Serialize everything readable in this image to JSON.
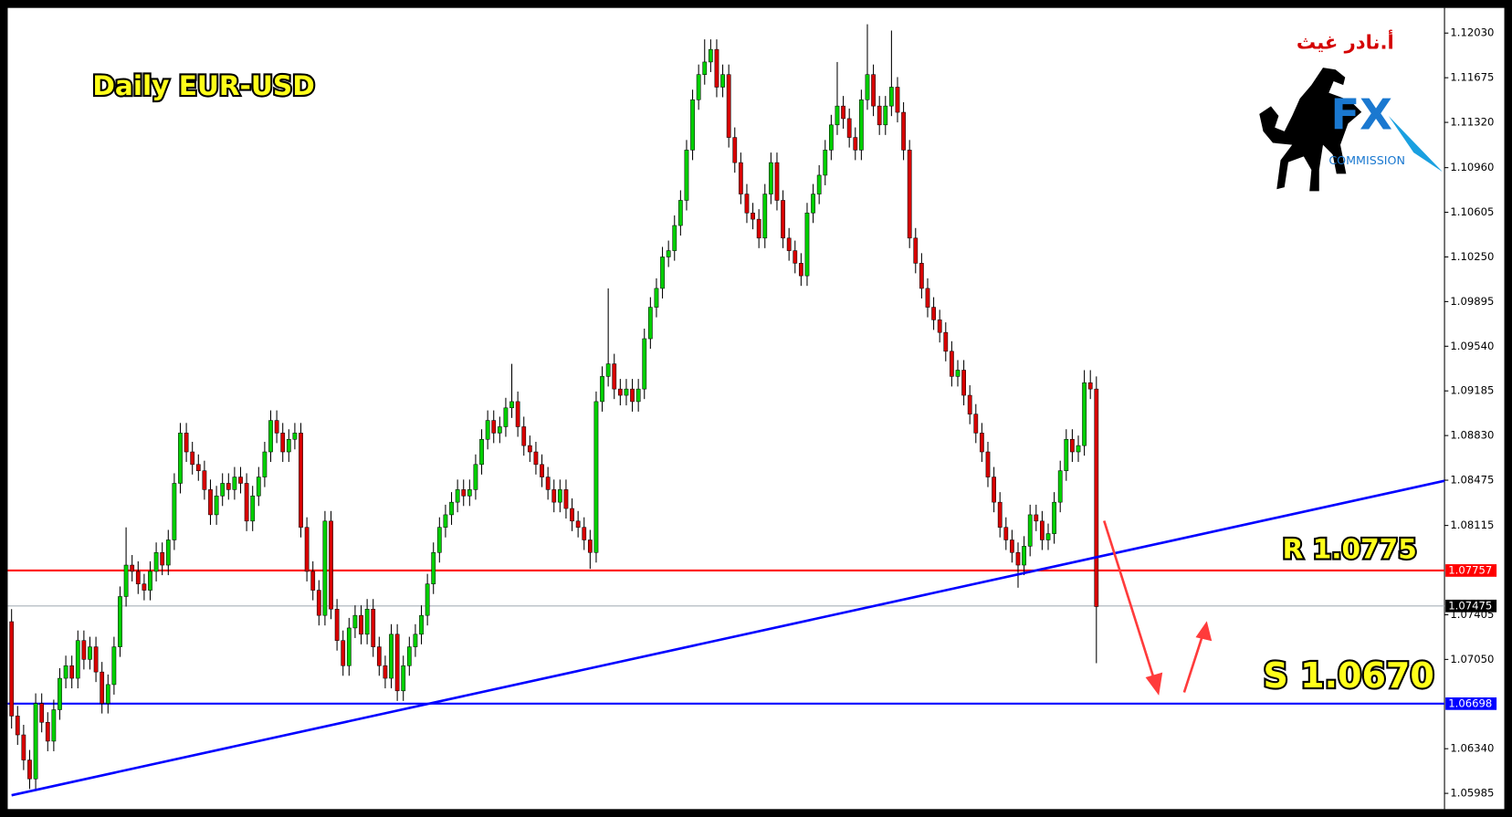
{
  "chart_data": {
    "type": "candlestick",
    "title": "Daily EUR-USD",
    "up_color": "#00d000",
    "down_color": "#d80000",
    "ylim": [
      1.0586,
      1.1223
    ],
    "yticks": [
      {
        "value": 1.1203,
        "label": "1.12030"
      },
      1.11675,
      {
        "value": 1.1132,
        "label": "1.11320"
      },
      {
        "value": 1.1096,
        "label": "1.10960"
      },
      1.10605,
      {
        "value": 1.1025,
        "label": "1.10250"
      },
      1.09895,
      {
        "value": 1.0954,
        "label": "1.09540"
      },
      1.09185,
      {
        "value": 1.0883,
        "label": "1.08830"
      },
      1.08475,
      1.08115,
      1.07405,
      {
        "value": 1.0705,
        "label": "1.07050"
      },
      {
        "value": 1.0634,
        "label": "1.06340"
      },
      1.05985
    ],
    "open": [
      1.0735,
      1.066,
      1.0645,
      1.0625,
      1.061,
      1.067,
      1.0655,
      1.064,
      1.0665,
      1.069,
      1.07,
      1.069,
      1.072,
      1.0705,
      1.0715,
      1.0695,
      1.067,
      1.0685,
      1.0715,
      1.0755,
      1.078,
      1.0775,
      1.0765,
      1.076,
      1.0775,
      1.079,
      1.078,
      1.08,
      1.0845,
      1.0885,
      1.087,
      1.086,
      1.0855,
      1.084,
      1.082,
      1.0835,
      1.0845,
      1.084,
      1.085,
      1.0845,
      1.0815,
      1.0835,
      1.085,
      1.087,
      1.0895,
      1.0885,
      1.087,
      1.088,
      1.0885,
      1.081,
      1.0775,
      1.076,
      1.074,
      1.0815,
      1.0745,
      1.072,
      1.07,
      1.073,
      1.074,
      1.0725,
      1.0745,
      1.0715,
      1.07,
      1.069,
      1.0725,
      1.068,
      1.07,
      1.0715,
      1.0725,
      1.074,
      1.0765,
      1.079,
      1.081,
      1.082,
      1.083,
      1.084,
      1.0835,
      1.084,
      1.086,
      1.088,
      1.0895,
      1.0885,
      1.089,
      1.0905,
      1.091,
      1.089,
      1.0875,
      1.087,
      1.086,
      1.085,
      1.084,
      1.083,
      1.084,
      1.0825,
      1.0815,
      1.081,
      1.08,
      1.079,
      1.091,
      1.093,
      1.094,
      1.092,
      1.0915,
      1.092,
      1.091,
      1.092,
      1.096,
      1.0985,
      1.1,
      1.1025,
      1.103,
      1.105,
      1.107,
      1.111,
      1.115,
      1.117,
      1.118,
      1.119,
      1.116,
      1.117,
      1.112,
      1.11,
      1.1075,
      1.106,
      1.1055,
      1.104,
      1.1075,
      1.11,
      1.107,
      1.104,
      1.103,
      1.102,
      1.101,
      1.106,
      1.1075,
      1.109,
      1.111,
      1.113,
      1.1145,
      1.1135,
      1.112,
      1.111,
      1.115,
      1.117,
      1.1145,
      1.113,
      1.1145,
      1.116,
      1.114,
      1.111,
      1.104,
      1.102,
      1.1,
      1.0985,
      1.0975,
      1.0965,
      1.095,
      1.093,
      1.0935,
      1.0915,
      1.09,
      1.0885,
      1.087,
      1.085,
      1.083,
      1.081,
      1.08,
      1.079,
      1.078,
      1.0795,
      1.082,
      1.0815,
      1.08,
      1.0805,
      1.083,
      1.0855,
      1.088,
      1.087,
      1.0875,
      1.0925,
      1.092
    ],
    "high": [
      1.0745,
      1.0668,
      1.0653,
      1.0633,
      1.0678,
      1.0678,
      1.0663,
      1.0673,
      1.0698,
      1.0708,
      1.0708,
      1.0728,
      1.0728,
      1.0723,
      1.0723,
      1.0703,
      1.0693,
      1.0723,
      1.0763,
      1.081,
      1.0788,
      1.0783,
      1.0773,
      1.0783,
      1.0798,
      1.0798,
      1.0808,
      1.0853,
      1.0893,
      1.0893,
      1.0878,
      1.0868,
      1.0863,
      1.0848,
      1.0843,
      1.0853,
      1.0853,
      1.0858,
      1.0858,
      1.0853,
      1.0843,
      1.0858,
      1.0878,
      1.0903,
      1.0903,
      1.0893,
      1.0888,
      1.0893,
      1.0893,
      1.0818,
      1.0783,
      1.0768,
      1.0823,
      1.0823,
      1.0753,
      1.0728,
      1.0738,
      1.0748,
      1.0748,
      1.0753,
      1.0753,
      1.0723,
      1.0708,
      1.0733,
      1.0733,
      1.0708,
      1.0723,
      1.0733,
      1.0748,
      1.0773,
      1.0798,
      1.0818,
      1.0828,
      1.0838,
      1.0848,
      1.0848,
      1.0848,
      1.0868,
      1.0888,
      1.0903,
      1.0903,
      1.0898,
      1.0913,
      1.094,
      1.0918,
      1.0898,
      1.0883,
      1.0878,
      1.0868,
      1.0858,
      1.0848,
      1.0848,
      1.0848,
      1.0833,
      1.0823,
      1.0818,
      1.0808,
      1.0918,
      1.0938,
      1.1,
      1.0948,
      1.0928,
      1.0928,
      1.0928,
      1.0928,
      1.0968,
      1.0993,
      1.1008,
      1.1033,
      1.1038,
      1.1058,
      1.1078,
      1.1118,
      1.1158,
      1.1178,
      1.1198,
      1.1198,
      1.1198,
      1.1178,
      1.1178,
      1.1128,
      1.1108,
      1.1083,
      1.1068,
      1.1063,
      1.1083,
      1.1108,
      1.1108,
      1.1078,
      1.1048,
      1.1038,
      1.1028,
      1.1068,
      1.1083,
      1.1098,
      1.1118,
      1.1138,
      1.118,
      1.1153,
      1.1143,
      1.1128,
      1.1158,
      1.121,
      1.1178,
      1.1153,
      1.1153,
      1.1205,
      1.1168,
      1.1148,
      1.1118,
      1.1048,
      1.1028,
      1.1008,
      1.0993,
      1.0983,
      1.0973,
      1.0958,
      1.0943,
      1.0943,
      1.0923,
      1.0908,
      1.0893,
      1.0878,
      1.0858,
      1.0838,
      1.0818,
      1.0808,
      1.0798,
      1.0803,
      1.0828,
      1.0828,
      1.0823,
      1.0813,
      1.0838,
      1.0863,
      1.0888,
      1.0888,
      1.0883,
      1.0935,
      1.0935,
      1.093
    ],
    "low": [
      1.065,
      1.0637,
      1.0617,
      1.0602,
      1.0602,
      1.0647,
      1.0632,
      1.0632,
      1.0657,
      1.0682,
      1.0682,
      1.0682,
      1.0697,
      1.0697,
      1.0687,
      1.0662,
      1.0662,
      1.0677,
      1.0707,
      1.0747,
      1.0767,
      1.0757,
      1.0752,
      1.0752,
      1.0767,
      1.0772,
      1.0772,
      1.0792,
      1.0837,
      1.0862,
      1.0852,
      1.0847,
      1.0832,
      1.0812,
      1.0812,
      1.0827,
      1.0832,
      1.0832,
      1.0837,
      1.0807,
      1.0807,
      1.0827,
      1.0842,
      1.0862,
      1.0877,
      1.0862,
      1.0862,
      1.0872,
      1.0802,
      1.0767,
      1.0752,
      1.0732,
      1.0732,
      1.0737,
      1.0712,
      1.0692,
      1.0692,
      1.0722,
      1.0717,
      1.0717,
      1.0707,
      1.0692,
      1.0682,
      1.0682,
      1.0672,
      1.0672,
      1.0692,
      1.0707,
      1.0717,
      1.0732,
      1.0757,
      1.0782,
      1.0802,
      1.0812,
      1.0822,
      1.0827,
      1.0827,
      1.0832,
      1.0852,
      1.0872,
      1.0877,
      1.0877,
      1.0882,
      1.0897,
      1.0882,
      1.0867,
      1.0862,
      1.0852,
      1.0842,
      1.0832,
      1.0822,
      1.0822,
      1.0817,
      1.0807,
      1.0802,
      1.0792,
      1.0777,
      1.0782,
      1.0902,
      1.0922,
      1.0912,
      1.0907,
      1.0907,
      1.0902,
      1.0902,
      1.0912,
      1.0952,
      1.0977,
      1.0992,
      1.1017,
      1.1022,
      1.1042,
      1.1062,
      1.1102,
      1.1142,
      1.1162,
      1.1172,
      1.1152,
      1.1152,
      1.1112,
      1.1092,
      1.1067,
      1.1052,
      1.1047,
      1.1032,
      1.1032,
      1.1067,
      1.1062,
      1.1032,
      1.1022,
      1.1012,
      1.1002,
      1.1002,
      1.1052,
      1.1067,
      1.1082,
      1.1102,
      1.1122,
      1.1127,
      1.1112,
      1.1102,
      1.1102,
      1.1142,
      1.1137,
      1.1122,
      1.1122,
      1.1137,
      1.1132,
      1.1102,
      1.1032,
      1.1012,
      1.0992,
      1.0977,
      1.0967,
      1.0957,
      1.0942,
      1.0922,
      1.0922,
      1.0907,
      1.0892,
      1.0877,
      1.0862,
      1.0842,
      1.0822,
      1.0802,
      1.0792,
      1.0782,
      1.0762,
      1.0772,
      1.0787,
      1.0807,
      1.0792,
      1.0792,
      1.0797,
      1.0822,
      1.0847,
      1.0862,
      1.0862,
      1.0867,
      1.0912,
      1.0702
    ],
    "close": [
      1.066,
      1.0645,
      1.0625,
      1.061,
      1.067,
      1.0655,
      1.064,
      1.0665,
      1.069,
      1.07,
      1.069,
      1.072,
      1.0705,
      1.0715,
      1.0695,
      1.067,
      1.0685,
      1.0715,
      1.0755,
      1.078,
      1.0775,
      1.0765,
      1.076,
      1.0775,
      1.079,
      1.078,
      1.08,
      1.0845,
      1.0885,
      1.087,
      1.086,
      1.0855,
      1.084,
      1.082,
      1.0835,
      1.0845,
      1.084,
      1.085,
      1.0845,
      1.0815,
      1.0835,
      1.085,
      1.087,
      1.0895,
      1.0885,
      1.087,
      1.088,
      1.0885,
      1.081,
      1.0775,
      1.076,
      1.074,
      1.0815,
      1.0745,
      1.072,
      1.07,
      1.073,
      1.074,
      1.0725,
      1.0745,
      1.0715,
      1.07,
      1.069,
      1.0725,
      1.068,
      1.07,
      1.0715,
      1.0725,
      1.074,
      1.0765,
      1.079,
      1.081,
      1.082,
      1.083,
      1.084,
      1.0835,
      1.084,
      1.086,
      1.088,
      1.0895,
      1.0885,
      1.089,
      1.0905,
      1.091,
      1.089,
      1.0875,
      1.087,
      1.086,
      1.085,
      1.084,
      1.083,
      1.084,
      1.0825,
      1.0815,
      1.081,
      1.08,
      1.079,
      1.091,
      1.093,
      1.094,
      1.092,
      1.0915,
      1.092,
      1.091,
      1.092,
      1.096,
      1.0985,
      1.1,
      1.1025,
      1.103,
      1.105,
      1.107,
      1.111,
      1.115,
      1.117,
      1.118,
      1.119,
      1.116,
      1.117,
      1.112,
      1.11,
      1.1075,
      1.106,
      1.1055,
      1.104,
      1.1075,
      1.11,
      1.107,
      1.104,
      1.103,
      1.102,
      1.101,
      1.106,
      1.1075,
      1.109,
      1.111,
      1.113,
      1.1145,
      1.1135,
      1.112,
      1.111,
      1.115,
      1.117,
      1.1145,
      1.113,
      1.1145,
      1.116,
      1.114,
      1.111,
      1.104,
      1.102,
      1.1,
      1.0985,
      1.0975,
      1.0965,
      1.095,
      1.093,
      1.0935,
      1.0915,
      1.09,
      1.0885,
      1.087,
      1.085,
      1.083,
      1.081,
      1.08,
      1.079,
      1.078,
      1.0795,
      1.082,
      1.0815,
      1.08,
      1.0805,
      1.083,
      1.0855,
      1.088,
      1.087,
      1.0875,
      1.0925,
      1.092,
      1.0747
    ],
    "levels": [
      {
        "value": 1.07757,
        "color": "#ff0000",
        "box_color": "#ff0000",
        "annotation": "R 1.0775"
      },
      {
        "value": 1.07475,
        "color": "#a8b0b8",
        "box_color": "#000000"
      },
      {
        "value": 1.06698,
        "color": "#0000ff",
        "box_color": "#0000ff",
        "annotation": "S 1.0670"
      }
    ],
    "trendline": {
      "color": "#0000ff",
      "values": [
        1.0597,
        1.0847
      ]
    }
  },
  "logo": {
    "author": "أ.نادر غيث",
    "brand": "FX",
    "tagline": "COMMISSION"
  }
}
